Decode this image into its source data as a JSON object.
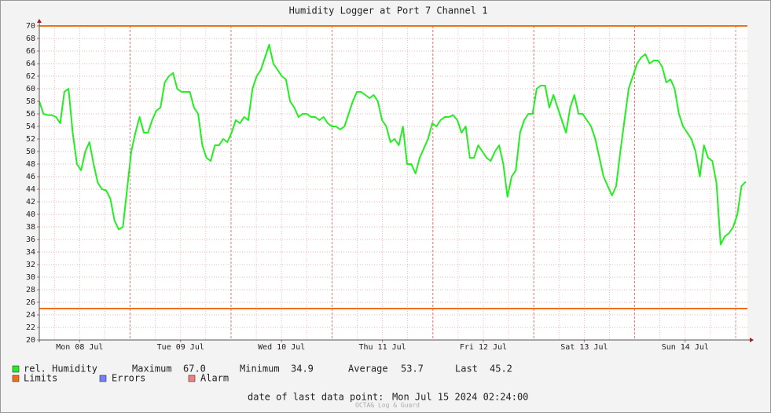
{
  "chart_data": {
    "type": "line",
    "title": "Humidity Logger at Port 7 Channel 1",
    "xlim": [
      "2024-07-08 02:24",
      "2024-07-15 02:48"
    ],
    "xticks": [
      {
        "value": "2024-07-08 12:00",
        "label": "Mon 08 Jul"
      },
      {
        "value": "2024-07-09 12:00",
        "label": "Tue 09 Jul"
      },
      {
        "value": "2024-07-10 12:00",
        "label": "Wed 10 Jul"
      },
      {
        "value": "2024-07-11 12:00",
        "label": "Thu 11 Jul"
      },
      {
        "value": "2024-07-12 12:00",
        "label": "Fri 12 Jul"
      },
      {
        "value": "2024-07-13 12:00",
        "label": "Sat 13 Jul"
      },
      {
        "value": "2024-07-14 12:00",
        "label": "Sun 14 Jul"
      }
    ],
    "ylim": [
      20,
      70
    ],
    "yticks": [
      20,
      22,
      24,
      26,
      28,
      30,
      32,
      34,
      36,
      38,
      40,
      42,
      44,
      46,
      48,
      50,
      52,
      54,
      56,
      58,
      60,
      62,
      64,
      66,
      68,
      70
    ],
    "grid": true,
    "series": [
      {
        "name": "rel. Humidity",
        "color": "#22ee22",
        "x_range": [
          "2024-07-08 02:24",
          "2024-07-15 02:24"
        ],
        "values": [
          58,
          56,
          55.8,
          55.8,
          55.5,
          54.5,
          59.5,
          60,
          53,
          48,
          47,
          50,
          51.5,
          48,
          45,
          44,
          43.8,
          42.5,
          39,
          37.6,
          38,
          44,
          50,
          53,
          55.5,
          53,
          53,
          55,
          56.5,
          57,
          61,
          62,
          62.5,
          60,
          59.5,
          59.5,
          59.5,
          57,
          56,
          51,
          49,
          48.5,
          51,
          51,
          52,
          51.5,
          53,
          55,
          54.5,
          55.5,
          55,
          60,
          62,
          63,
          65,
          67,
          64,
          63,
          62,
          61.5,
          58,
          57,
          55.5,
          56,
          56,
          55.5,
          55.5,
          55,
          55.5,
          54.5,
          54,
          54,
          53.5,
          54,
          56,
          58,
          59.5,
          59.5,
          59,
          58.5,
          59,
          58,
          55,
          54,
          51.5,
          52,
          51,
          54,
          48,
          48,
          46.5,
          49,
          50.5,
          52,
          54.5,
          54,
          55,
          55.5,
          55.5,
          55.8,
          55,
          53,
          54,
          49,
          49,
          51,
          50,
          49,
          48.5,
          50,
          51,
          48,
          42.8,
          46,
          47,
          53,
          55,
          56,
          56,
          60,
          60.5,
          60.5,
          57,
          59,
          57,
          55,
          53,
          57,
          59,
          56,
          56,
          55,
          54,
          52,
          49,
          46,
          44.5,
          43,
          44.5,
          50,
          55,
          60,
          62,
          64,
          65,
          65.5,
          64,
          64.5,
          64.5,
          63.5,
          61,
          61.5,
          60,
          56,
          54,
          53,
          52,
          50,
          46,
          51,
          49,
          48.5,
          45,
          35.2,
          36.5,
          37,
          38,
          40,
          44.5,
          45.2
        ]
      }
    ],
    "limits": {
      "name": "Limits",
      "color": "#f07010",
      "values": [
        70,
        25
      ]
    },
    "legend_extra": [
      {
        "name": "Errors",
        "color": "#7080ff"
      },
      {
        "name": "Alarm",
        "color": "#f08080"
      }
    ],
    "stats": [
      {
        "name": "Maximum",
        "value": 67,
        "value_label": "67.0"
      },
      {
        "name": "Minimum",
        "value": 34.9,
        "value_label": "34.9"
      },
      {
        "name": "Average",
        "value": 53.7,
        "value_label": "53.7"
      },
      {
        "name": "Last",
        "value": 45.2,
        "value_label": "45.2"
      }
    ],
    "footer": {
      "label": "date of last data point:",
      "value": "Mon Jul 15 2024 02:24:00"
    },
    "watermark": "OCTA& Log & Guard"
  }
}
